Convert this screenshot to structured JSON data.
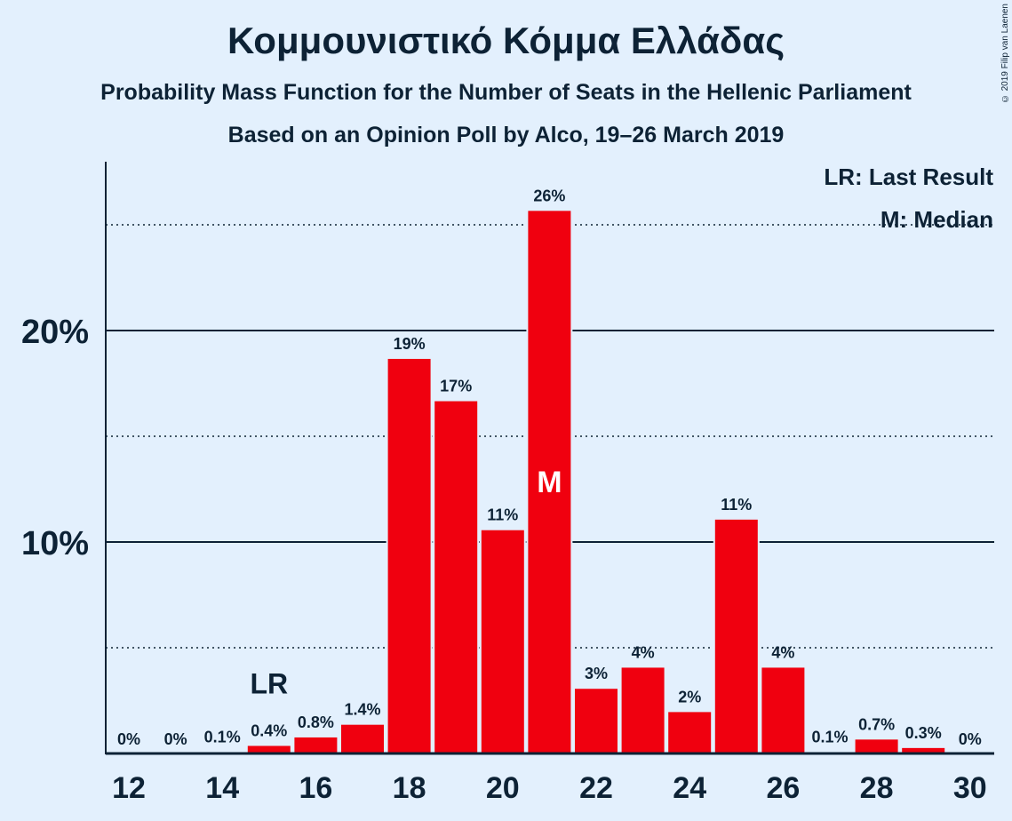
{
  "title": "Κομμουνιστικό Κόμμα Ελλάδας",
  "subtitle": "Probability Mass Function for the Number of Seats in the Hellenic Parliament",
  "subtitle2": "Based on an Opinion Poll by Alco, 19–26 March 2019",
  "copyright": "© 2019 Filip van Laenen",
  "legend": {
    "last_result": "LR: Last Result",
    "median": "M: Median"
  },
  "colors": {
    "bar": "#f0000f",
    "background": "#e3f0fd",
    "text": "#0d2235"
  },
  "chart_data": {
    "type": "bar",
    "x": [
      12,
      13,
      14,
      15,
      16,
      17,
      18,
      19,
      20,
      21,
      22,
      23,
      24,
      25,
      26,
      27,
      28,
      29,
      30
    ],
    "values": [
      0,
      0,
      0.1,
      0.4,
      0.8,
      1.4,
      18.7,
      16.7,
      10.6,
      25.7,
      3.1,
      4.1,
      2.0,
      11.1,
      4.1,
      0.1,
      0.7,
      0.3,
      0
    ],
    "data_labels": [
      "0%",
      "0%",
      "0.1%",
      "0.4%",
      "0.8%",
      "1.4%",
      "19%",
      "17%",
      "11%",
      "26%",
      "3%",
      "4%",
      "2%",
      "11%",
      "4%",
      "0.1%",
      "0.7%",
      "0.3%",
      "0%"
    ],
    "x_tick_labels": [
      "12",
      "14",
      "16",
      "18",
      "20",
      "22",
      "24",
      "26",
      "28",
      "30"
    ],
    "x_ticks": [
      12,
      14,
      16,
      18,
      20,
      22,
      24,
      26,
      28,
      30
    ],
    "y_tick_labels": [
      "10%",
      "20%"
    ],
    "y_ticks": [
      10,
      20
    ],
    "y_dotted_lines": [
      5,
      15,
      25
    ],
    "ylim": [
      0,
      28
    ],
    "last_result_seat": 15,
    "last_result_label": "LR",
    "median_seat": 21,
    "median_label": "M",
    "xlabel": "",
    "ylabel": ""
  }
}
